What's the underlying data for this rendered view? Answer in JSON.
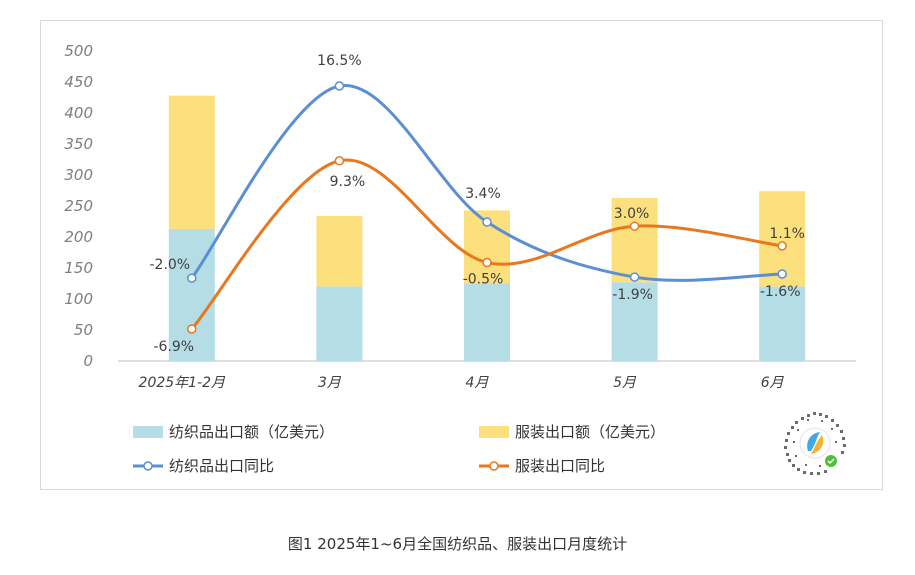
{
  "caption": "图1 2025年1~6月全国纺织品、服装出口月度统计",
  "chart_data": {
    "type": "bar",
    "categories": [
      "2025年1-2月",
      "3月",
      "4月",
      "5月",
      "6月"
    ],
    "y_ticks": [
      "500",
      "450",
      "400",
      "350",
      "300",
      "250",
      "200",
      "150",
      "100",
      "50",
      "0"
    ],
    "ylim": [
      0,
      500
    ],
    "stacked": true,
    "series": [
      {
        "name": "纺织品出口额（亿美元）",
        "kind": "bar",
        "values": [
          213,
          120,
          125,
          127,
          120
        ],
        "color": "#b4dde6"
      },
      {
        "name": "服装出口额（亿美元）",
        "kind": "bar",
        "values": [
          215,
          114,
          118,
          136,
          154
        ],
        "color": "#fde07e"
      },
      {
        "name": "纺织品出口同比",
        "kind": "line",
        "values": [
          -2.0,
          16.5,
          3.4,
          -1.9,
          -1.6
        ],
        "labels": [
          "-2.0%",
          "16.5%",
          "3.4%",
          "-1.9%",
          "-1.6%"
        ],
        "color": "#5b8fd4"
      },
      {
        "name": "服装出口同比",
        "kind": "line",
        "values": [
          -6.9,
          9.3,
          -0.5,
          3.0,
          1.1
        ],
        "labels": [
          "-6.9%",
          "9.3%",
          "-0.5%",
          "3.0%",
          "1.1%"
        ],
        "color": "#e8771e"
      }
    ],
    "legend_position": "bottom",
    "grid": false
  }
}
